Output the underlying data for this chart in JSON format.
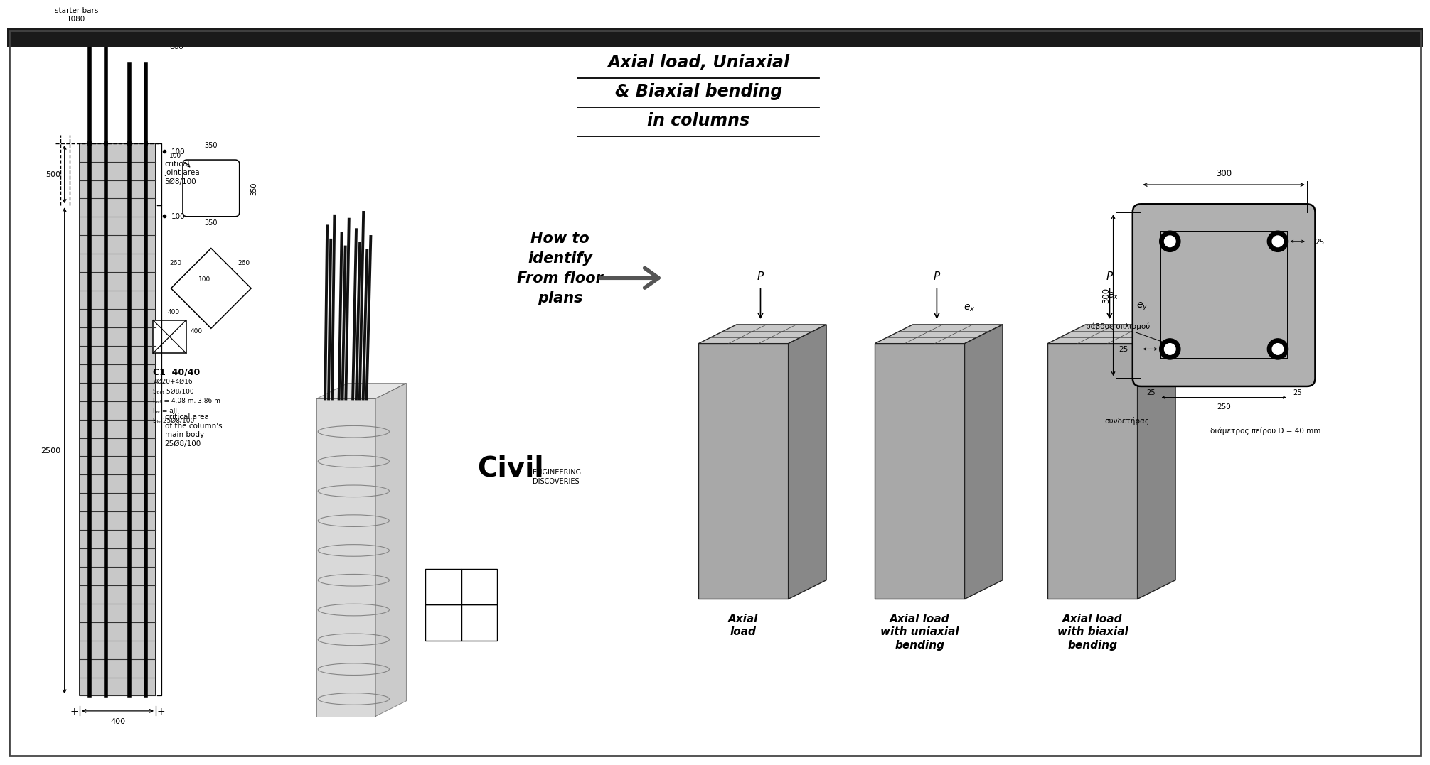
{
  "bg_color": "#ffffff",
  "axial_title_lines": [
    "Axial load, Uniaxial",
    "& Biaxial bending",
    "in columns"
  ],
  "how_to_text": "How to\nidentify\nFrom floor\nplans",
  "col_labels": [
    "Axial\nload",
    "Axial load\nwith uniaxial\nbending",
    "Axial load\nwith biaxial\nbending"
  ],
  "c1_label": "C1  40/40",
  "c1_line1": "4Ø20+4Ø16",
  "c1_line2": "Sₚₑₜ 5Ø8/100",
  "c1_line3": "lₙₑₜ = 4.08 m, 3.86 m",
  "c1_line4": "lₕₑ = all",
  "c1_line5": "Sₗₑ 25Ø8/100",
  "starter_bars_left": "starter bars\n1080",
  "starter_bars_right": "starter bars\n860",
  "dim_500": "500",
  "dim_2500": "2500",
  "dim_400": "400",
  "dim_100_top": "100",
  "dim_100_mid": "100",
  "critical_joint": "critical\njoint area\n5Ø8/100",
  "critical_body": "critical area\nof the column's\nmain body\n25Ø8/100",
  "section_350_top": "350",
  "section_350_side": "350",
  "section_350_bot": "350",
  "section_100": "100",
  "cross_260a": "260",
  "cross_260b": "260",
  "cross_100": "100",
  "box_400a": "400",
  "box_400b": "400",
  "right_300_top": "300",
  "right_25_top": "25",
  "right_300_left": "300",
  "right_250": "250",
  "right_25_bot": "25",
  "right_25_left": "25",
  "right_25_right": "25",
  "rabdos": "ράβδος οπλισμού",
  "syndetiras": "συνδετήρας",
  "diameter_text": "διάμετρος πείρου D = 40 mm",
  "civil_text": "Civil",
  "engineering_text": "ENGINEERING\nDISCOVERIES",
  "top_bar_color": "#1a1a1a",
  "face_color": "#a8a8a8",
  "top_color": "#c8c8c8",
  "side_color": "#888888",
  "concrete_color": "#c8c8c8",
  "section_fill": "#b0b0b0"
}
